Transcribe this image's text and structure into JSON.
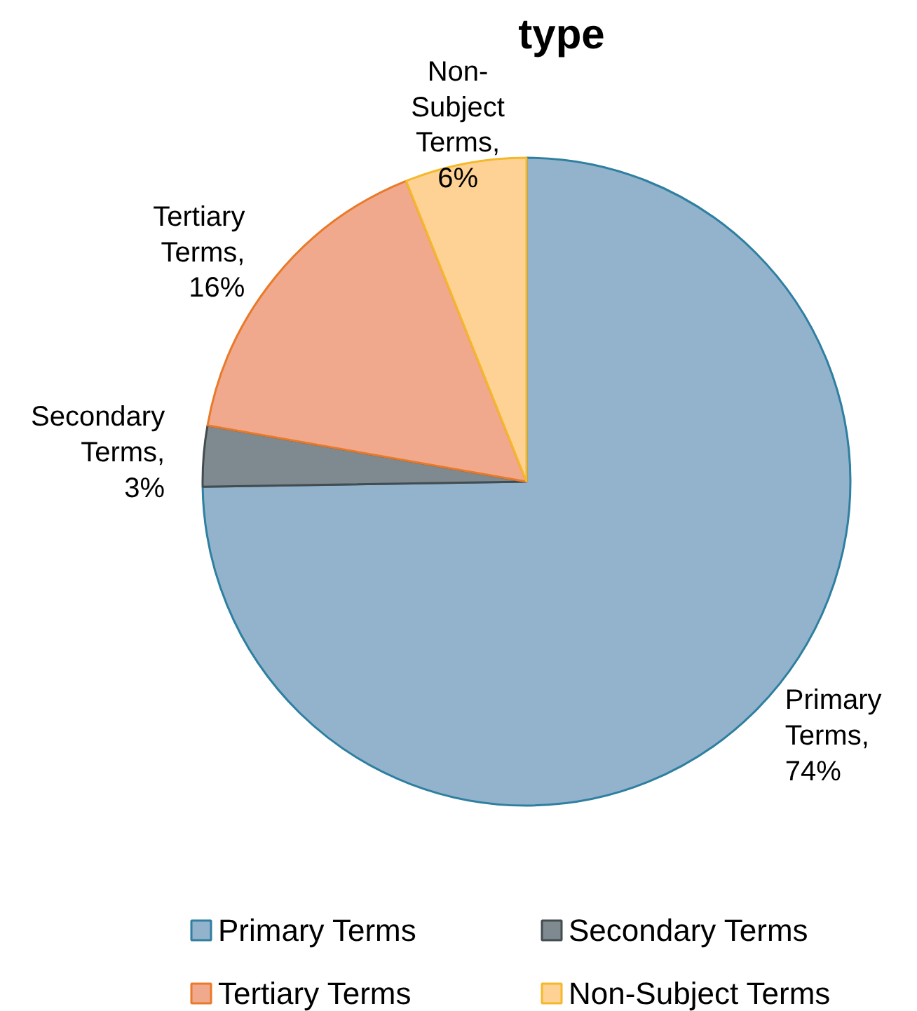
{
  "chart_data": {
    "type": "pie",
    "title": "type",
    "categories": [
      "Primary Terms",
      "Secondary Terms",
      "Tertiary Terms",
      "Non-Subject Terms"
    ],
    "values": [
      74,
      3,
      16,
      6
    ],
    "colors": [
      "#93b3cd",
      "#7e8a90",
      "#f1a98d",
      "#fdd294"
    ],
    "value_labels": [
      "Primary Terms, 74%",
      "Secondary Terms, 3%",
      "Tertiary Terms, 16%",
      "Non-Subject Terms, 6%"
    ],
    "legend": "bottom"
  }
}
